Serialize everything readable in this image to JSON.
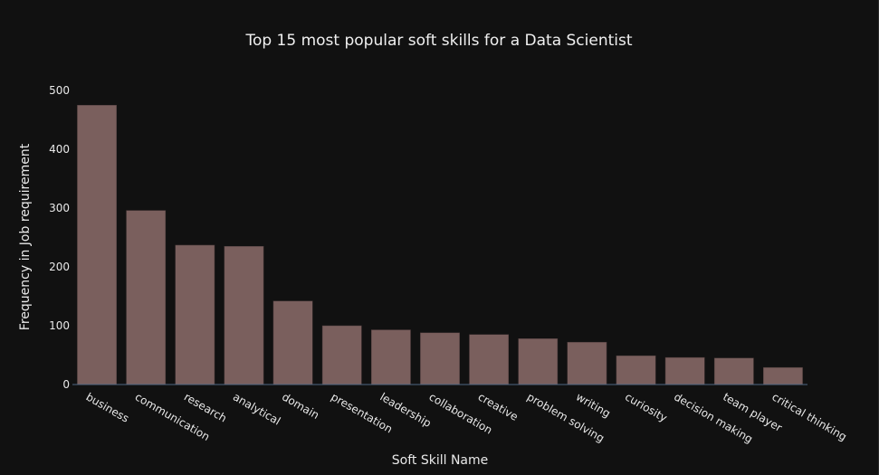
{
  "chart_data": {
    "type": "bar",
    "title": "Top 15 most popular soft skills for a Data Scientist",
    "xlabel": "Soft Skill Name",
    "ylabel": "Frequency in Job requirement",
    "categories": [
      "business",
      "communication",
      "research",
      "analytical",
      "domain",
      "presentation",
      "leadership",
      "collaboration",
      "creative",
      "problem solving",
      "writing",
      "curiosity",
      "decision making",
      "team player",
      "critical thinking"
    ],
    "values": [
      475,
      296,
      237,
      235,
      142,
      100,
      93,
      88,
      85,
      78,
      72,
      49,
      46,
      45,
      29
    ],
    "ylim": [
      0,
      500
    ],
    "yticks": [
      0,
      100,
      200,
      300,
      400,
      500
    ],
    "grid": false,
    "colors": {
      "background": "#111111",
      "bar_fill": "#7a5f5d",
      "bar_edge": "#4a3a3a",
      "text": "#e9e9e9",
      "axis_line": "#506784"
    }
  }
}
